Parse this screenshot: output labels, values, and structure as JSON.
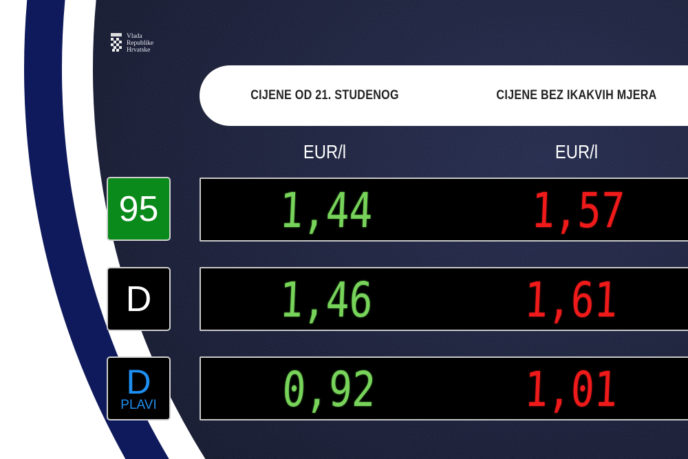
{
  "logo": {
    "lines": [
      "Vlada",
      "Republike",
      "Hrvatske"
    ]
  },
  "header": {
    "col1": "CIJENE OD 21. STUDENOG",
    "col2": "CIJENE BEZ IKAKVIH MJERA"
  },
  "units": {
    "col1": "EUR/l",
    "col2": "EUR/l"
  },
  "rows": [
    {
      "fuel": "95",
      "fuel_sub": "",
      "price_new": "1,44",
      "price_old": "1,57"
    },
    {
      "fuel": "D",
      "fuel_sub": "",
      "price_new": "1,46",
      "price_old": "1,61"
    },
    {
      "fuel": "D",
      "fuel_sub": "PLAVI",
      "price_new": "0,92",
      "price_old": "1,01"
    }
  ],
  "colors": {
    "navy": "#0f1a5c",
    "background": "#141a38",
    "green_price": "#77d35a",
    "red_price": "#f01a1a",
    "badge_95": "#0a8a1a",
    "plavi_blue": "#1e8ef0"
  }
}
